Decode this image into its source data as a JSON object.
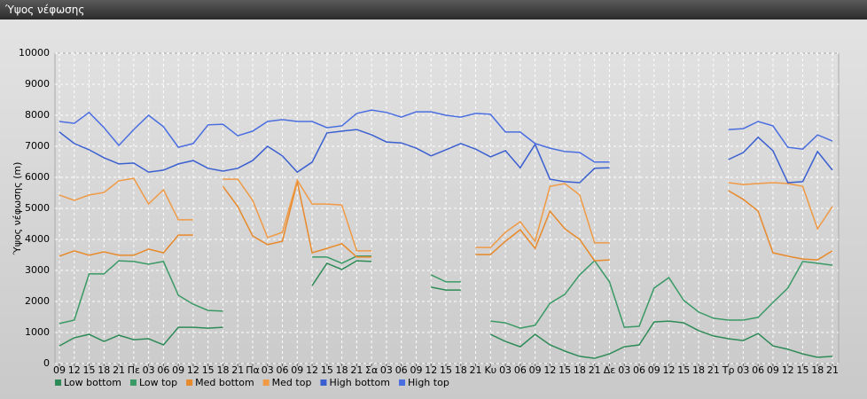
{
  "chart_data": {
    "type": "line",
    "title": "Ύψος νέφωσης",
    "y_label": "Ύψος νέφωσης (m)",
    "categories": [
      "09",
      "12",
      "15",
      "18",
      "21",
      "Πε",
      "03",
      "06",
      "09",
      "12",
      "15",
      "18",
      "21",
      "Πα",
      "03",
      "06",
      "09",
      "12",
      "15",
      "18",
      "21",
      "Σα",
      "03",
      "06",
      "09",
      "12",
      "15",
      "18",
      "21",
      "Κυ",
      "03",
      "06",
      "09",
      "12",
      "15",
      "18",
      "21",
      "Δε",
      "03",
      "06",
      "09",
      "12",
      "15",
      "18",
      "21",
      "Τρ",
      "03",
      "06",
      "09",
      "12",
      "15",
      "18",
      "21"
    ],
    "ylim": [
      0,
      10000
    ],
    "yticks": [
      0,
      1000,
      2000,
      3000,
      4000,
      5000,
      6000,
      7000,
      8000,
      9000,
      10000
    ],
    "grid": true,
    "legend": "bottom",
    "series": [
      {
        "name": "Low bottom",
        "color": "#2e8b57",
        "values": [
          570,
          830,
          940,
          710,
          910,
          770,
          800,
          600,
          1170,
          1170,
          1140,
          1170,
          null,
          null,
          null,
          null,
          null,
          2510,
          3230,
          3030,
          3310,
          3290,
          null,
          null,
          null,
          2460,
          2370,
          2370,
          null,
          940,
          710,
          540,
          940,
          600,
          400,
          230,
          170,
          310,
          540,
          600,
          1340,
          1370,
          1310,
          1060,
          890,
          800,
          740,
          970,
          570,
          460,
          310,
          200,
          230
        ]
      },
      {
        "name": "Low top",
        "color": "#3a9a66",
        "values": [
          1290,
          1400,
          2890,
          2890,
          3310,
          3290,
          3200,
          3290,
          2200,
          1910,
          1710,
          1690,
          null,
          null,
          null,
          null,
          null,
          3430,
          3430,
          3230,
          3460,
          3460,
          null,
          null,
          null,
          2860,
          2630,
          2630,
          null,
          1370,
          1310,
          1140,
          1230,
          1940,
          2230,
          2860,
          3310,
          2630,
          1170,
          1200,
          2430,
          2770,
          2030,
          1660,
          1460,
          1400,
          1400,
          1490,
          1970,
          2430,
          3290,
          3230,
          3170
        ]
      },
      {
        "name": "Med bottom",
        "color": "#e8892a",
        "values": [
          3460,
          3630,
          3490,
          3600,
          3490,
          3490,
          3690,
          3570,
          4140,
          4140,
          null,
          5710,
          5060,
          4110,
          3830,
          3940,
          5860,
          3570,
          3710,
          3860,
          3430,
          3430,
          null,
          null,
          null,
          null,
          null,
          null,
          3510,
          3510,
          3940,
          4310,
          3710,
          4910,
          4340,
          4000,
          3310,
          3340,
          null,
          null,
          null,
          null,
          null,
          null,
          null,
          5570,
          5290,
          4910,
          3570,
          3460,
          3370,
          3340,
          3630
        ]
      },
      {
        "name": "Med top",
        "color": "#f09a45",
        "values": [
          5430,
          5260,
          5430,
          5510,
          5890,
          5970,
          5140,
          5600,
          4630,
          4630,
          null,
          5940,
          5940,
          5260,
          4060,
          4230,
          5910,
          5140,
          5140,
          5110,
          3630,
          3630,
          null,
          null,
          null,
          null,
          null,
          null,
          3740,
          3740,
          4230,
          4570,
          3940,
          5710,
          5800,
          5430,
          3890,
          3890,
          null,
          null,
          null,
          null,
          null,
          null,
          null,
          5830,
          5770,
          5800,
          5830,
          5800,
          5710,
          4340,
          5060
        ]
      },
      {
        "name": "High bottom",
        "color": "#3a5fd0",
        "values": [
          7460,
          7090,
          6890,
          6630,
          6430,
          6460,
          6170,
          6230,
          6430,
          6540,
          6290,
          6200,
          6290,
          6540,
          7000,
          6690,
          6170,
          6490,
          7430,
          7490,
          7540,
          7370,
          7140,
          7110,
          6940,
          6690,
          6890,
          7090,
          6910,
          6660,
          6860,
          6310,
          7060,
          5940,
          5860,
          5830,
          6290,
          6310,
          null,
          null,
          null,
          null,
          null,
          null,
          null,
          6570,
          6800,
          7290,
          6860,
          5830,
          5860,
          6830,
          6230
        ]
      },
      {
        "name": "High top",
        "color": "#4a6ee0",
        "values": [
          7800,
          7740,
          8090,
          7600,
          7030,
          7540,
          8000,
          7630,
          6970,
          7090,
          7690,
          7710,
          7340,
          7490,
          7800,
          7860,
          7800,
          7800,
          7600,
          7660,
          8060,
          8170,
          8090,
          7940,
          8110,
          8110,
          8000,
          7940,
          8060,
          8030,
          7460,
          7460,
          7090,
          6940,
          6830,
          6800,
          6490,
          6490,
          null,
          null,
          null,
          null,
          null,
          null,
          null,
          7540,
          7570,
          7800,
          7660,
          6970,
          6910,
          7370,
          7170
        ]
      }
    ]
  }
}
